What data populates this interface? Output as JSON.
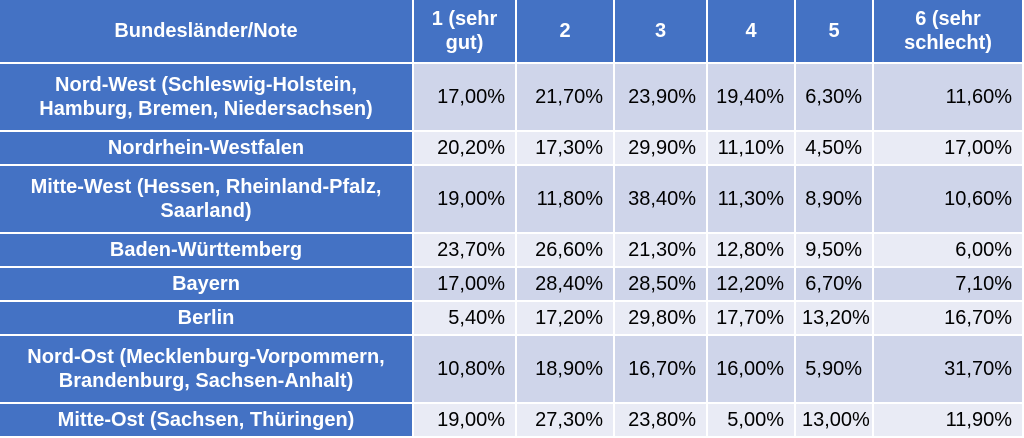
{
  "table": {
    "headers": [
      "Bundesländer/Note",
      "1 (sehr gut)",
      "2",
      "3",
      "4",
      "5",
      "6 (sehr schlecht)"
    ],
    "rows": [
      {
        "label": "Nord-West (Schleswig-Holstein, Hamburg, Bremen, Niedersachsen)",
        "values": [
          "17,00%",
          "21,70%",
          "23,90%",
          "19,40%",
          "6,30%",
          "11,60%"
        ]
      },
      {
        "label": "Nordrhein-Westfalen",
        "values": [
          "20,20%",
          "17,30%",
          "29,90%",
          "11,10%",
          "4,50%",
          "17,00%"
        ]
      },
      {
        "label": "Mitte-West (Hessen, Rheinland-Pfalz, Saarland)",
        "values": [
          "19,00%",
          "11,80%",
          "38,40%",
          "11,30%",
          "8,90%",
          "10,60%"
        ]
      },
      {
        "label": "Baden-Württemberg",
        "values": [
          "23,70%",
          "26,60%",
          "21,30%",
          "12,80%",
          "9,50%",
          "6,00%"
        ]
      },
      {
        "label": "Bayern",
        "values": [
          "17,00%",
          "28,40%",
          "28,50%",
          "12,20%",
          "6,70%",
          "7,10%"
        ]
      },
      {
        "label": "Berlin",
        "values": [
          "5,40%",
          "17,20%",
          "29,80%",
          "17,70%",
          "13,20%",
          "16,70%"
        ]
      },
      {
        "label": "Nord-Ost (Mecklenburg-Vorpommern, Brandenburg, Sachsen-Anhalt)",
        "values": [
          "10,80%",
          "18,90%",
          "16,70%",
          "16,00%",
          "5,90%",
          "31,70%"
        ]
      },
      {
        "label": "Mitte-Ost (Sachsen, Thüringen)",
        "values": [
          "19,00%",
          "27,30%",
          "23,80%",
          "5,00%",
          "13,00%",
          "11,90%"
        ]
      }
    ]
  },
  "chart_data": {
    "type": "table",
    "columns": [
      "Bundesländer/Note",
      "1 (sehr gut)",
      "2",
      "3",
      "4",
      "5",
      "6 (sehr schlecht)"
    ],
    "rows": [
      [
        "Nord-West (Schleswig-Holstein, Hamburg, Bremen, Niedersachsen)",
        17.0,
        21.7,
        23.9,
        19.4,
        6.3,
        11.6
      ],
      [
        "Nordrhein-Westfalen",
        20.2,
        17.3,
        29.9,
        11.1,
        4.5,
        17.0
      ],
      [
        "Mitte-West (Hessen, Rheinland-Pfalz, Saarland)",
        19.0,
        11.8,
        38.4,
        11.3,
        8.9,
        10.6
      ],
      [
        "Baden-Württemberg",
        23.7,
        26.6,
        21.3,
        12.8,
        9.5,
        6.0
      ],
      [
        "Bayern",
        17.0,
        28.4,
        28.5,
        12.2,
        6.7,
        7.1
      ],
      [
        "Berlin",
        5.4,
        17.2,
        29.8,
        17.7,
        13.2,
        16.7
      ],
      [
        "Nord-Ost (Mecklenburg-Vorpommern, Brandenburg, Sachsen-Anhalt)",
        10.8,
        18.9,
        16.7,
        16.0,
        5.9,
        31.7
      ],
      [
        "Mitte-Ost (Sachsen, Thüringen)",
        19.0,
        27.3,
        23.8,
        5.0,
        13.0,
        11.9
      ]
    ]
  }
}
